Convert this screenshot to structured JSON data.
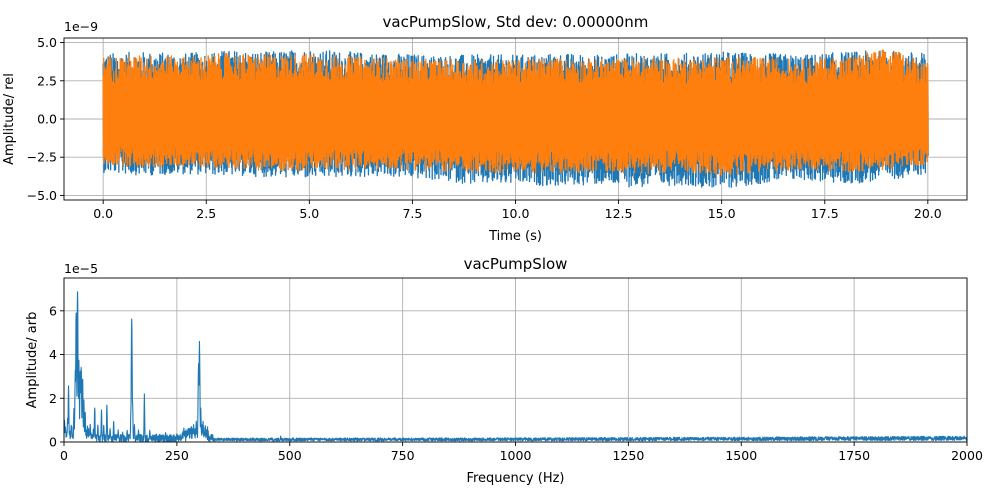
{
  "chart_data": [
    {
      "type": "line",
      "title": "vacPumpSlow, Std dev: 0.00000nm",
      "xlabel": "Time (s)",
      "ylabel": "Amplitude/ rel",
      "y_offset_text": "1e−9",
      "xlim": [
        -0.95,
        20.95
      ],
      "ylim": [
        -5.3,
        5.3
      ],
      "xticks": [
        0.0,
        2.5,
        5.0,
        7.5,
        10.0,
        12.5,
        15.0,
        17.5,
        20.0
      ],
      "xtick_labels": [
        "0.0",
        "2.5",
        "5.0",
        "7.5",
        "10.0",
        "12.5",
        "15.0",
        "17.5",
        "20.0"
      ],
      "yticks": [
        -5.0,
        -2.5,
        0.0,
        2.5,
        5.0
      ],
      "ytick_labels": [
        "−5.0",
        "−2.5",
        "0.0",
        "2.5",
        "5.0"
      ],
      "grid": true,
      "colors": [
        "#1f77b4",
        "#ff7f0e"
      ],
      "series": [
        {
          "x": [
            0,
            1,
            2,
            3,
            4,
            5,
            6,
            7,
            8,
            9,
            10,
            11,
            12,
            13,
            14,
            15,
            16,
            17,
            18,
            19,
            20
          ],
          "upper": [
            4.3,
            4.4,
            4.3,
            4.5,
            4.4,
            4.6,
            4.4,
            4.3,
            4.2,
            4.2,
            4.2,
            4.3,
            4.2,
            4.3,
            4.3,
            4.4,
            4.3,
            4.2,
            4.4,
            4.5,
            4.3
          ],
          "lower": [
            -3.5,
            -3.7,
            -3.6,
            -3.7,
            -3.8,
            -3.9,
            -3.8,
            -3.8,
            -4.0,
            -4.3,
            -4.3,
            -4.4,
            -4.3,
            -4.5,
            -4.3,
            -4.6,
            -4.2,
            -4.0,
            -4.3,
            -4.0,
            -3.6
          ]
        },
        {
          "x": [
            0,
            1,
            2,
            3,
            4,
            5,
            6,
            7,
            8,
            9,
            10,
            11,
            12,
            13,
            14,
            15,
            16,
            17,
            18,
            19,
            20
          ],
          "upper": [
            4.1,
            4.2,
            4.1,
            4.3,
            4.2,
            4.3,
            4.1,
            4.0,
            3.9,
            3.9,
            3.9,
            4.0,
            3.9,
            4.0,
            4.0,
            4.1,
            4.0,
            3.9,
            4.1,
            4.6,
            3.8
          ],
          "lower": [
            -3.0,
            -3.2,
            -3.1,
            -3.2,
            -3.4,
            -3.4,
            -3.3,
            -3.3,
            -3.4,
            -3.6,
            -3.5,
            -3.6,
            -3.4,
            -3.6,
            -3.4,
            -3.8,
            -3.4,
            -3.3,
            -3.5,
            -3.3,
            -3.0
          ]
        }
      ]
    },
    {
      "type": "line",
      "title": "vacPumpSlow",
      "xlabel": "Frequency (Hz)",
      "ylabel": "Amplitude/ arb",
      "y_offset_text": "1e−5",
      "xlim": [
        0,
        2000
      ],
      "ylim": [
        0,
        7.5
      ],
      "xticks": [
        0,
        250,
        500,
        750,
        1000,
        1250,
        1500,
        1750,
        2000
      ],
      "xtick_labels": [
        "0",
        "250",
        "500",
        "750",
        "1000",
        "1250",
        "1500",
        "1750",
        "2000"
      ],
      "yticks": [
        0,
        2,
        4,
        6
      ],
      "ytick_labels": [
        "0",
        "2",
        "4",
        "6"
      ],
      "grid": true,
      "colors": [
        "#1f77b4"
      ],
      "peaks": [
        {
          "f": 1,
          "a": 1.1
        },
        {
          "f": 3,
          "a": 0.8
        },
        {
          "f": 8,
          "a": 1.2
        },
        {
          "f": 10,
          "a": 2.8
        },
        {
          "f": 16,
          "a": 0.9
        },
        {
          "f": 22,
          "a": 1.6
        },
        {
          "f": 25,
          "a": 3.6
        },
        {
          "f": 27,
          "a": 6.7
        },
        {
          "f": 30,
          "a": 7.5
        },
        {
          "f": 33,
          "a": 3.8
        },
        {
          "f": 36,
          "a": 3.5
        },
        {
          "f": 38,
          "a": 3.9
        },
        {
          "f": 41,
          "a": 3.3
        },
        {
          "f": 44,
          "a": 2.2
        },
        {
          "f": 47,
          "a": 1.5
        },
        {
          "f": 52,
          "a": 0.8
        },
        {
          "f": 58,
          "a": 0.9
        },
        {
          "f": 65,
          "a": 0.6
        },
        {
          "f": 68,
          "a": 1.8
        },
        {
          "f": 75,
          "a": 0.9
        },
        {
          "f": 83,
          "a": 1.6
        },
        {
          "f": 88,
          "a": 0.8
        },
        {
          "f": 95,
          "a": 1.9
        },
        {
          "f": 102,
          "a": 0.7
        },
        {
          "f": 110,
          "a": 1.0
        },
        {
          "f": 120,
          "a": 0.6
        },
        {
          "f": 130,
          "a": 0.5
        },
        {
          "f": 140,
          "a": 0.6
        },
        {
          "f": 148,
          "a": 1.4
        },
        {
          "f": 150,
          "a": 6.6
        },
        {
          "f": 152,
          "a": 1.8
        },
        {
          "f": 156,
          "a": 0.9
        },
        {
          "f": 165,
          "a": 0.6
        },
        {
          "f": 178,
          "a": 2.3
        },
        {
          "f": 190,
          "a": 0.6
        },
        {
          "f": 205,
          "a": 0.4
        },
        {
          "f": 225,
          "a": 0.5
        },
        {
          "f": 250,
          "a": 0.4
        },
        {
          "f": 265,
          "a": 0.5
        },
        {
          "f": 275,
          "a": 0.3
        },
        {
          "f": 285,
          "a": 0.7
        },
        {
          "f": 293,
          "a": 1.1
        },
        {
          "f": 298,
          "a": 4.0
        },
        {
          "f": 300,
          "a": 5.0
        },
        {
          "f": 303,
          "a": 1.6
        },
        {
          "f": 308,
          "a": 1.0
        },
        {
          "f": 315,
          "a": 0.6
        },
        {
          "f": 325,
          "a": 0.3
        },
        {
          "f": 480,
          "a": 0.3
        }
      ],
      "noise_floor": [
        {
          "f": 330,
          "a": 0.12
        },
        {
          "f": 1000,
          "a": 0.13
        },
        {
          "f": 1500,
          "a": 0.15
        },
        {
          "f": 2000,
          "a": 0.18
        }
      ]
    }
  ]
}
